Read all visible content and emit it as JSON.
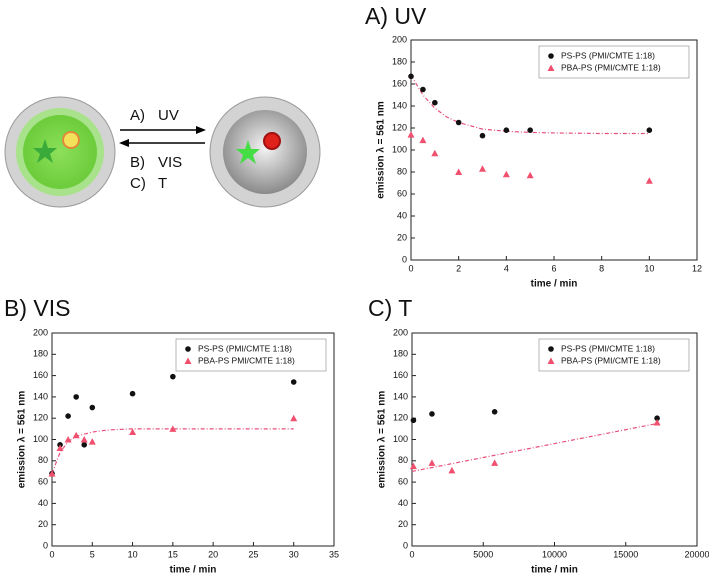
{
  "scheme": {
    "labels": [
      "A)",
      "UV",
      "B)",
      "VIS",
      "C)",
      "T"
    ]
  },
  "chart_data": [
    {
      "type": "scatter",
      "title": "A) UV",
      "xlabel": "time / min",
      "ylabel": "emission λ = 561 nm",
      "xlim": [
        0,
        12
      ],
      "xticks": [
        0,
        2,
        4,
        6,
        8,
        10,
        12
      ],
      "ylim": [
        0,
        200
      ],
      "yticks": [
        0,
        20,
        40,
        60,
        80,
        100,
        120,
        140,
        160,
        180,
        200
      ],
      "legend": "upper right",
      "series": [
        {
          "name": "PS-PS (PMI/CMTE 1:18)",
          "color": "#111111",
          "marker": "circle",
          "x": [
            0,
            0.5,
            1,
            2,
            3,
            4,
            5,
            10
          ],
          "values": [
            167,
            155,
            143,
            125,
            113,
            118,
            118,
            118
          ]
        },
        {
          "name": "PBA-PS (PMI/CMTE 1:18)",
          "color": "#f0506e",
          "marker": "triangle",
          "x": [
            0,
            0.5,
            1,
            2,
            3,
            4,
            5,
            10
          ],
          "values": [
            114,
            109,
            97,
            80,
            83,
            78,
            77,
            72
          ]
        }
      ],
      "fit": {
        "color": "#e8507a",
        "x": [
          0,
          0.5,
          1,
          1.5,
          2,
          3,
          4,
          5,
          6,
          8,
          10
        ],
        "values": [
          168,
          150,
          138,
          130,
          125,
          119,
          117,
          116,
          115.5,
          115,
          115
        ]
      }
    },
    {
      "type": "scatter",
      "title": "B) VIS",
      "xlabel": "time / min",
      "ylabel": "emission λ = 561 nm",
      "xlim": [
        0,
        35
      ],
      "xticks": [
        0,
        5,
        10,
        15,
        20,
        25,
        30,
        35
      ],
      "ylim": [
        0,
        200
      ],
      "yticks": [
        0,
        20,
        40,
        60,
        80,
        100,
        120,
        140,
        160,
        180,
        200
      ],
      "legend": "upper right",
      "series": [
        {
          "name": "PS-PS (PMI/CMTE 1:18)",
          "color": "#111111",
          "marker": "circle",
          "x": [
            0,
            1,
            2,
            3,
            4,
            5,
            10,
            15,
            30
          ],
          "values": [
            68,
            95,
            122,
            140,
            95,
            130,
            143,
            159,
            154
          ]
        },
        {
          "name": "PBA-PS PMI/CMTE 1:18)",
          "color": "#f0506e",
          "marker": "triangle",
          "x": [
            0,
            1,
            2,
            3,
            4,
            5,
            10,
            15,
            30
          ],
          "values": [
            68,
            92,
            100,
            104,
            100,
            98,
            107,
            110,
            120
          ]
        }
      ],
      "fit": {
        "color": "#e8507a",
        "x": [
          0,
          1,
          2,
          3,
          5,
          7,
          10,
          15,
          20,
          30
        ],
        "values": [
          68,
          88,
          98,
          103,
          107,
          109,
          110,
          110,
          110,
          110
        ]
      }
    },
    {
      "type": "scatter",
      "title": "C) T",
      "xlabel": "time / min",
      "ylabel": "emission λ = 561 nm",
      "xlim": [
        0,
        20000
      ],
      "xticks": [
        0,
        5000,
        10000,
        15000,
        20000
      ],
      "ylim": [
        0,
        200
      ],
      "yticks": [
        0,
        20,
        40,
        60,
        80,
        100,
        120,
        140,
        160,
        180,
        200
      ],
      "legend": "upper right",
      "series": [
        {
          "name": "PS-PS (PMI/CMTE 1:18)",
          "color": "#111111",
          "marker": "circle",
          "x": [
            100,
            1400,
            5800,
            17200
          ],
          "values": [
            118,
            124,
            126,
            120
          ]
        },
        {
          "name": "PBA-PS (PMI/CMTE 1:18)",
          "color": "#f0506e",
          "marker": "triangle",
          "x": [
            100,
            1400,
            2800,
            5800,
            17200
          ],
          "values": [
            75,
            78,
            71,
            78,
            116
          ]
        }
      ],
      "fit": {
        "color": "#e8507a",
        "x": [
          0,
          17200
        ],
        "values": [
          70,
          115
        ]
      }
    }
  ]
}
